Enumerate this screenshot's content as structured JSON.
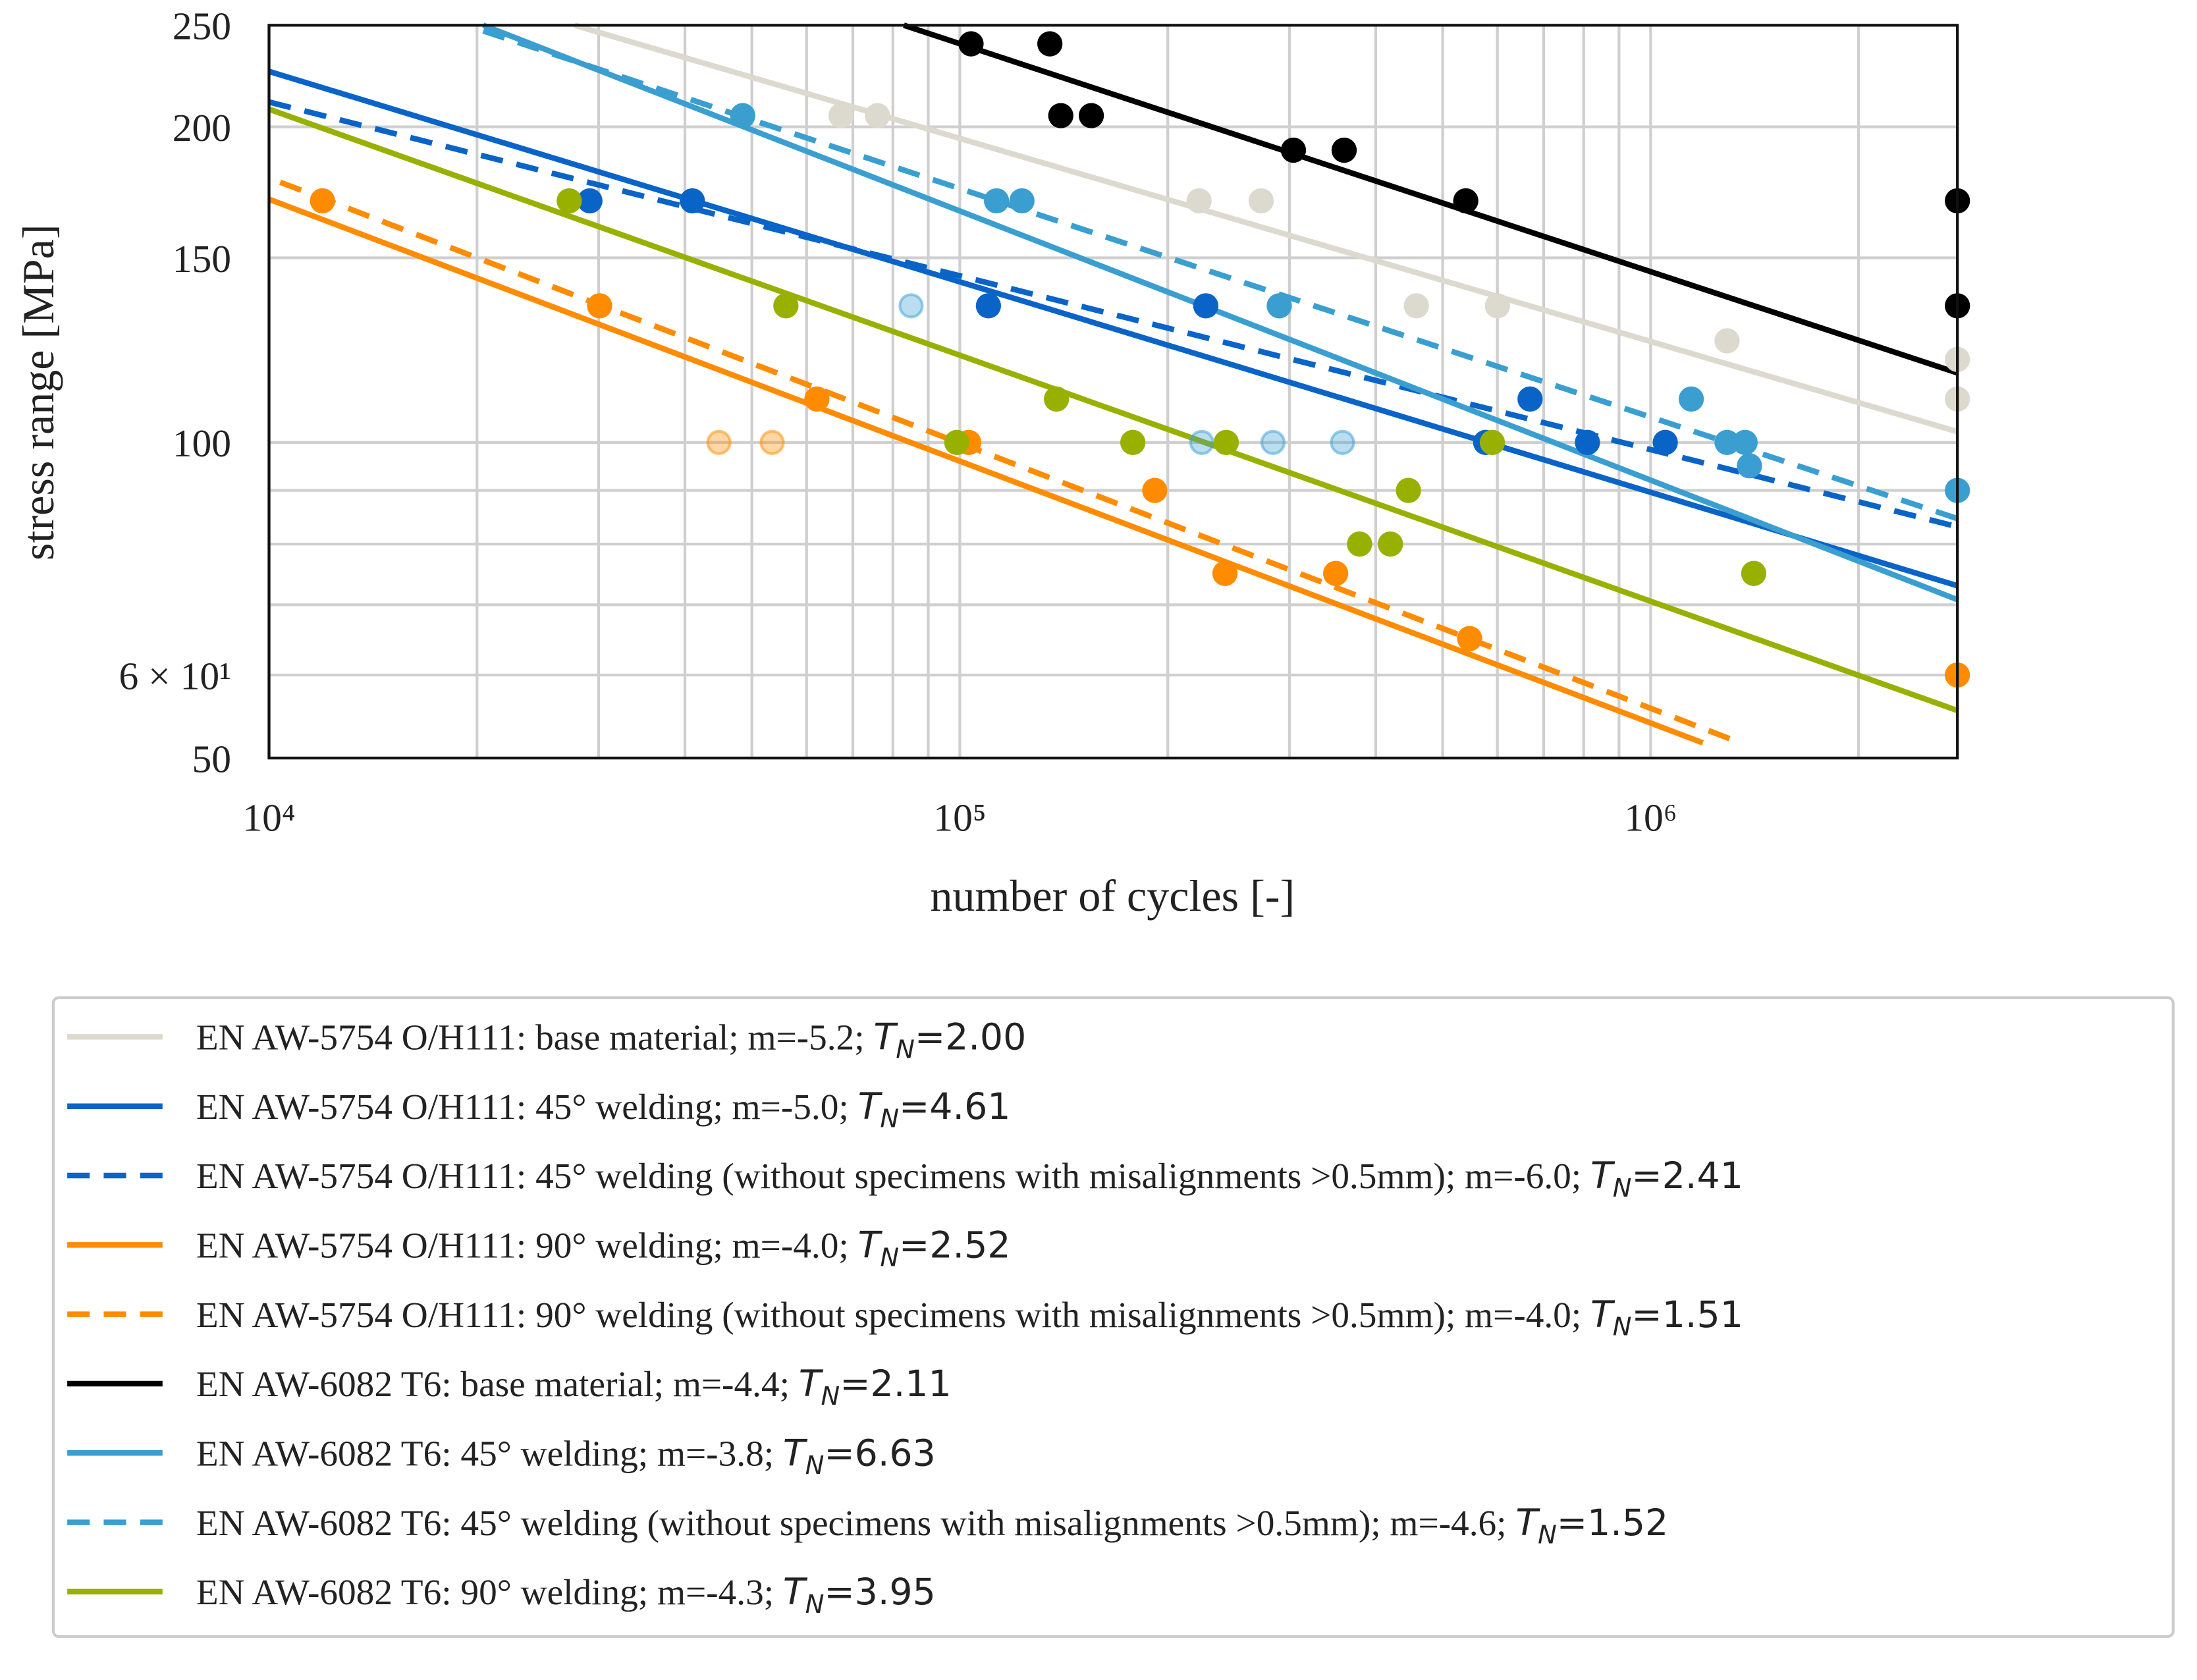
{
  "chart_data": {
    "type": "scatter",
    "x_label": "number of cycles [-]",
    "y_label": "stress range [MPa]",
    "xscale": "log",
    "yscale": "log",
    "grid": true,
    "xlim": [
      10000,
      2780000
    ],
    "ylim": [
      50,
      250
    ],
    "xticks": [
      {
        "value": 10000,
        "label": "10⁴"
      },
      {
        "value": 100000,
        "label": "10⁵"
      },
      {
        "value": 1000000,
        "label": "10⁶"
      }
    ],
    "x_minor_ticks": [
      20000,
      30000,
      40000,
      50000,
      60000,
      70000,
      80000,
      90000,
      200000,
      300000,
      400000,
      500000,
      600000,
      700000,
      800000,
      900000,
      2000000
    ],
    "yticks": [
      50,
      {
        "value": 60,
        "label": "6 × 10¹"
      },
      100,
      150,
      200,
      250
    ],
    "y_minor_ticks": [
      70,
      80,
      90
    ],
    "legend": "below",
    "series": [
      {
        "name": "EN AW-5754 O/H111: base material; m=-5.2; TN=2.00",
        "color": "#dcd9cf",
        "dash": false,
        "line_x": [
          27700,
          2780000
        ],
        "line_y": [
          250,
          102.4
        ],
        "points_x": [
          67300,
          76000,
          222000,
          273000,
          458000,
          600000,
          1290000,
          2780000,
          2780000
        ],
        "points_y": [
          205,
          205,
          170,
          170,
          135,
          135,
          125,
          120,
          110
        ]
      },
      {
        "name": "EN AW-5754 O/H111: 45° welding; m=-5.0; TN=4.61",
        "color": "#0a64c8",
        "dash": false,
        "line_x": [
          10000,
          2780000
        ],
        "line_y": [
          225.9,
          73.0
        ],
        "points_x": [
          29140,
          41000,
          110000,
          227000,
          669000,
          810000,
          1050000,
          577000
        ],
        "points_y": [
          170,
          170,
          135,
          135,
          110,
          100,
          100,
          100
        ]
      },
      {
        "name": "EN AW-5754 O/H111: 45° welding (without specimens with misalignments >0.5mm); m=-6.0; TN=2.41",
        "color": "#0a64c8",
        "dash": true,
        "line_x": [
          10000,
          2780000
        ],
        "line_y": [
          211.2,
          83.1
        ]
      },
      {
        "name": "EN AW-5754 O/H111: 90° welding; m=-4.0; TN=2.52",
        "color": "#ff8c00",
        "dash": false,
        "line_x": [
          10000,
          1190000
        ],
        "line_y": [
          170.6,
          51.7
        ],
        "points_x": [
          11950,
          30100,
          62100,
          103000,
          191500,
          242000,
          350000,
          547000,
          2780000
        ],
        "points_y": [
          170,
          135,
          110,
          100,
          90,
          75,
          75,
          65,
          60
        ],
        "excluded_x": [
          44800,
          53500
        ],
        "excluded_y": [
          100,
          100
        ]
      },
      {
        "name": "EN AW-5754 O/H111: 90° welding (without specimens with misalignments >0.5mm); m=-4.0; TN=1.51",
        "color": "#ff8c00",
        "dash": true,
        "line_x": [
          10380,
          1349000
        ],
        "line_y": [
          177.1,
          51.7
        ]
      },
      {
        "name": "EN AW-6082 T6: base material; m=-4.4; TN=2.11",
        "color": "#000000",
        "dash": false,
        "line_x": [
          82980,
          2780000
        ],
        "line_y": [
          250,
          116.5
        ],
        "points_x": [
          103800,
          135000,
          140000,
          155000,
          304000,
          360000,
          540000,
          2780000,
          2780000
        ],
        "points_y": [
          240,
          240,
          205,
          205,
          190,
          190,
          170,
          170,
          135
        ]
      },
      {
        "name": "EN AW-6082 T6: 45° welding; m=-3.8; TN=6.63",
        "color": "#3a9fd0",
        "dash": false,
        "line_x": [
          20420,
          2780000
        ],
        "line_y": [
          250,
          70.8
        ],
        "points_x": [
          48500,
          113000,
          123000,
          290000,
          1145000,
          1290000,
          1370000,
          1390000,
          2780000
        ],
        "points_y": [
          205,
          170,
          170,
          135,
          110,
          100,
          100,
          95,
          90
        ],
        "excluded_x": [
          85000,
          224000,
          284000,
          358000
        ],
        "excluded_y": [
          135,
          100,
          100,
          100
        ]
      },
      {
        "name": "EN AW-6082 T6: 45° welding (without specimens with misalignments >0.5mm); m=-4.6; TN=1.52",
        "color": "#3a9fd0",
        "dash": true,
        "line_x": [
          20420,
          2780000
        ],
        "line_y": [
          246.9,
          84.6
        ]
      },
      {
        "name": "EN AW-6082 T6: 90° welding; m=-4.3; TN=3.95",
        "color": "#98b000",
        "dash": false,
        "line_x": [
          10000,
          2780000
        ],
        "line_y": [
          207.9,
          55.5
        ],
        "points_x": [
          27200,
          56000,
          138000,
          99000,
          178000,
          243000,
          590000,
          446000,
          379000,
          420000,
          1410000
        ],
        "points_y": [
          170,
          135,
          110,
          100,
          100,
          100,
          100,
          90,
          80,
          80,
          75
        ]
      }
    ]
  }
}
